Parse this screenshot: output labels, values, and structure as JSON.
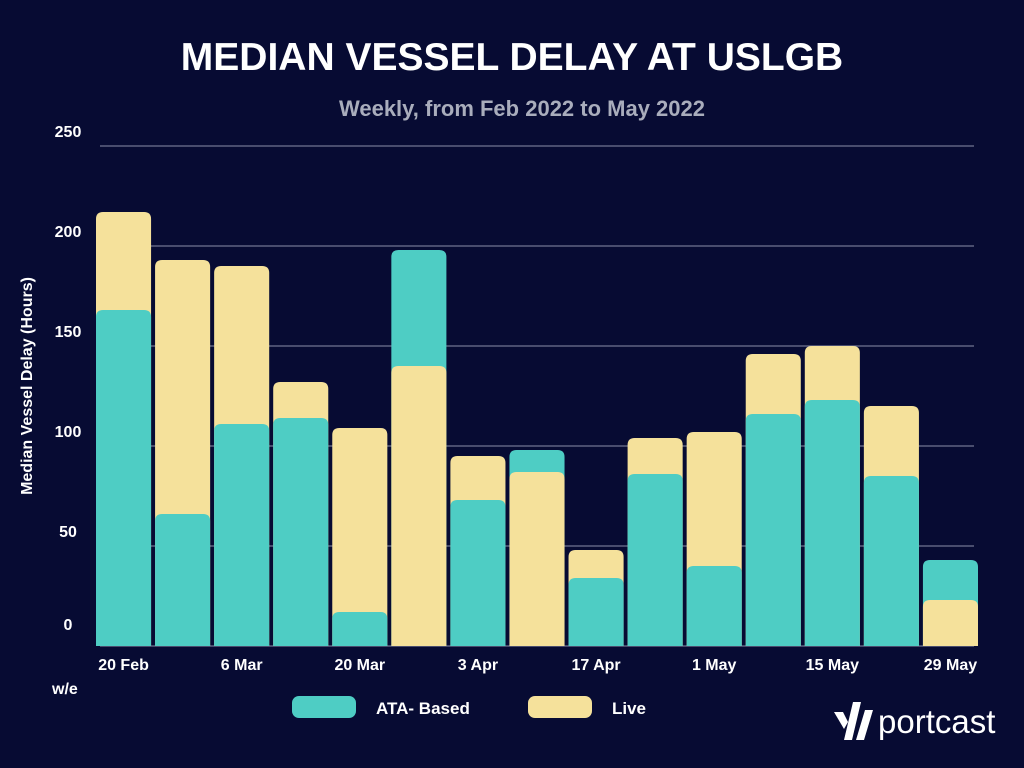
{
  "chart_data": {
    "type": "bar",
    "title": "MEDIAN VESSEL DELAY AT USLGB",
    "subtitle": "Weekly, from Feb 2022 to May 2022",
    "ylabel": "Median Vessel Delay (Hours)",
    "xlabel": "w/e",
    "ylim": [
      0,
      250
    ],
    "yticks": [
      0,
      50,
      100,
      150,
      200,
      250
    ],
    "grid": true,
    "legend_position": "bottom",
    "categories": [
      "20 Feb",
      "27 Feb",
      "6 Mar",
      "13 Mar",
      "20 Mar",
      "27 Mar",
      "3 Apr",
      "10 Apr",
      "17 Apr",
      "24 Apr",
      "1 May",
      "8 May",
      "15 May",
      "22 May",
      "29 May"
    ],
    "xtick_labels": [
      "20 Feb",
      "6 Mar",
      "20 Mar",
      "3 Apr",
      "17 Apr",
      "1 May",
      "15 May",
      "29 May"
    ],
    "series": [
      {
        "name": "ATA- Based",
        "color": "#4ecdc4",
        "values": [
          168,
          66,
          111,
          114,
          17,
          198,
          73,
          98,
          34,
          86,
          40,
          116,
          123,
          85,
          43
        ]
      },
      {
        "name": "Live",
        "color": "#f5e19b",
        "values": [
          217,
          193,
          190,
          132,
          109,
          140,
          95,
          87,
          48,
          104,
          107,
          146,
          150,
          120,
          23
        ]
      }
    ]
  },
  "brand": {
    "name": "portcast"
  }
}
